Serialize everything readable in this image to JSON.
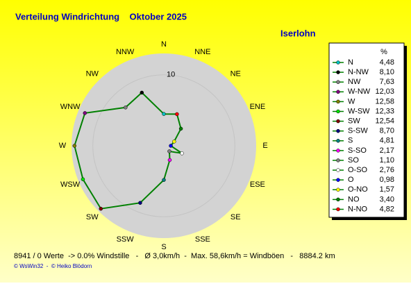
{
  "chart_data": {
    "type": "windrose",
    "title": "Verteilung Windrichtung    Oktober 2025",
    "subtitle": "Iserlohn",
    "categories": [
      "N",
      "NNW",
      "NW",
      "WNW",
      "W",
      "WSW",
      "SW",
      "SSW",
      "S",
      "SSE",
      "SE",
      "ESE",
      "E",
      "ENE",
      "NE",
      "NNE"
    ],
    "legend_title": "%",
    "legend_names": [
      "N",
      "N-NW",
      "NW",
      "W-NW",
      "W",
      "W-SW",
      "SW",
      "S-SW",
      "S",
      "S-SO",
      "SO",
      "O-SO",
      "O",
      "O-NO",
      "NO",
      "N-NO"
    ],
    "values": [
      4.48,
      8.1,
      7.63,
      12.03,
      12.58,
      12.33,
      12.54,
      8.7,
      4.81,
      2.17,
      1.1,
      2.76,
      0.98,
      1.57,
      3.4,
      4.82
    ],
    "value_labels": [
      "4,48",
      "8,10",
      "7,63",
      "12,03",
      "12,58",
      "12,33",
      "12,54",
      "8,70",
      "4,81",
      "2,17",
      "1,10",
      "2,76",
      "0,98",
      "1,57",
      "3,40",
      "4,82"
    ],
    "colors": [
      "#00c0c0",
      "#000000",
      "#808080",
      "#800080",
      "#808000",
      "#00e000",
      "#800000",
      "#000080",
      "#008080",
      "#ff00ff",
      "#808080",
      "#ffffff",
      "#0000ff",
      "#ffff00",
      "#008000",
      "#ff0000"
    ],
    "line_color": "#008000",
    "rlim": [
      0,
      13
    ],
    "rticks": [
      10
    ],
    "footer": "8941 / 0 Werte  -> 0.0% Windstille   -   Ø 3,0km/h  -  Max. 58,6km/h = Windböen   -   8884.2 km",
    "credits": "© WsWin32  -  © Heiko Blödorn"
  }
}
